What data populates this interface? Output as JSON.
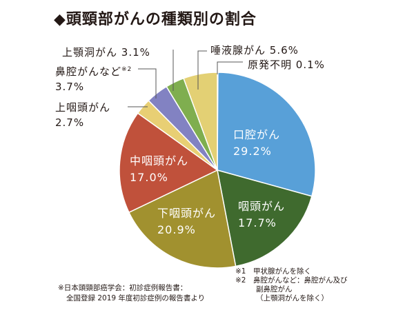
{
  "chart_data": {
    "type": "pie",
    "title": "◆頭頸部がんの種類別の割合",
    "slices": [
      {
        "name": "原発不明",
        "value": 0.1,
        "label": "0.1%",
        "color": "#e5d57a"
      },
      {
        "name": "口腔がん",
        "value": 29.2,
        "label": "29.2%",
        "color": "#58a0d8"
      },
      {
        "name": "咽頭がん",
        "value": 17.7,
        "label": "17.7%",
        "color": "#3f6a2e"
      },
      {
        "name": "下咽頭がん",
        "value": 20.9,
        "label": "20.9%",
        "color": "#a1912f"
      },
      {
        "name": "中咽頭がん",
        "value": 17.0,
        "label": "17.0%",
        "color": "#c0513b"
      },
      {
        "name": "上咽頭がん",
        "value": 2.7,
        "label": "2.7%",
        "color": "#e8cf74"
      },
      {
        "name": "鼻腔がんなど",
        "value": 3.7,
        "label": "3.7%",
        "color": "#8282c2",
        "note": "※2"
      },
      {
        "name": "上顎洞がん",
        "value": 3.1,
        "label": "3.1%",
        "color": "#7fae4f"
      },
      {
        "name": "唾液腺がん",
        "value": 5.6,
        "label": "5.6%",
        "color": "#e3d074"
      }
    ]
  },
  "notes": {
    "n1": "※1　甲状腺がんを除く",
    "n2a": "※2　鼻腔がんなど：鼻腔がん及び",
    "n2b": "副鼻腔がん",
    "n2c": "（上顎洞がんを除く）",
    "src1": "※日本頭頸部癌学会：初診症例報告書：",
    "src2": "全国登録 2019 年度初診症例の報告書より"
  }
}
